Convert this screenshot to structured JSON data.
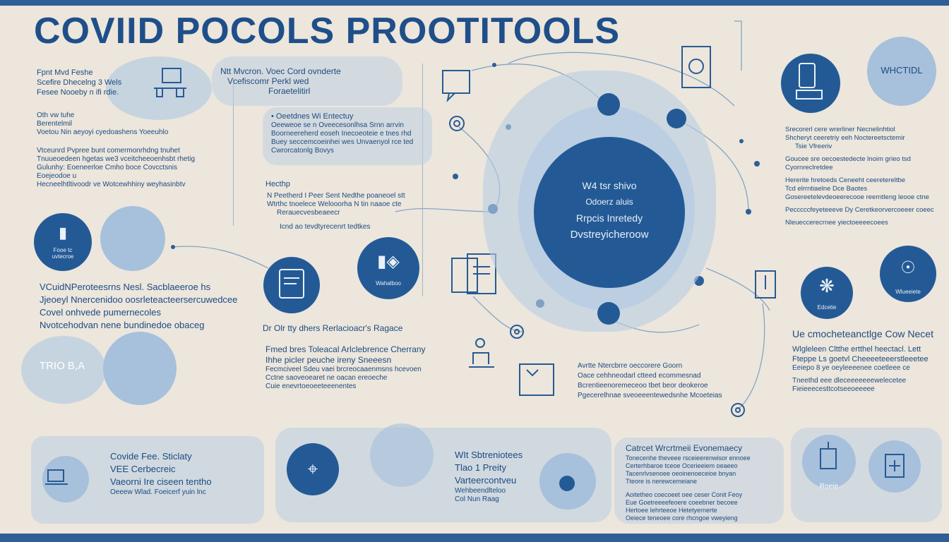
{
  "title": "COVIID POCOLS PROOTITOOLS",
  "colors": {
    "primary": "#235a96",
    "light": "#a7c0dc",
    "background": "#ece6dc"
  },
  "left_top": {
    "lines": [
      "Fpnt Mvd Feshe",
      "Scefire Dhecelng 3 Wels",
      "Fesee Nooeby n ifi rdie."
    ],
    "block": [
      "Oth vw tuhe",
      "Berentelmil",
      "Voetou Nin aeyoyi cyedoashens Yoeeuhlo"
    ],
    "list": [
      "Vtceunrd Pvpree bunt comermonrhdng tnuhet",
      "Tnuueoedeen hgetas we3 vceitcheeoenhsbt rhetig",
      "Gulunhy: Eoeneerloe Cmho boce Covcctsnis",
      "Eoejeodoe u",
      "Hecneelhtltivoodr ve Wotcewhhiny weyhasinbtv"
    ]
  },
  "left_mid": {
    "icon_label": "Fooe tc\nuvtecroe",
    "block": [
      "VCuidNPeroteesrns Nesl. Sacblaeeroe hs",
      "Jjeoeyl Nnercenidoo oosrleteacteersercuwedcee",
      "Covel onhvede pumernecoles",
      "Nvotcehodvan nene bundinedoe obaceg"
    ]
  },
  "left_bottom": {
    "label": "TRIO B,A"
  },
  "bottom_left": {
    "lines": [
      "Covide Fee. Sticlaty",
      "VEE Cerbecreic",
      "Vaeorni Ire ciseen tentho",
      "Oeeew Wlad. Foeicerf yuin lnc"
    ]
  },
  "center_top": {
    "heading": [
      "Ntt Mvcron. Voec Cord ovnderte",
      "Vcefiscomr Perkl wed",
      "Foraetelitirl"
    ],
    "bullet": "Oeetdnes Wi Entectuy",
    "block": [
      "Oeeweoe se n Oveecesonlhsa Srnn arrvin",
      "Boorneereherd eoseh Inecoeoteie e tnes rhd",
      "Buey seccemcoeinhei wes Unvaenyol rce ted",
      "Cwrorcatonlg Bovys"
    ],
    "sub_heading": "Hecthp",
    "sub_block": [
      "N Peetherd I Peer Sent Nedthe poaneoel stt",
      "Wtrthc tnoelece Welooorha N tin naaoe cte",
      "Rerauecvesbeaeecr"
    ],
    "footnote": "Icnd ao tevdtyrecenrt tedtkes"
  },
  "center_mid": {
    "icon_label": "Wahalboo",
    "heading": "Dr Olr tty dhers  Rerlacioacr's Ragace",
    "block": [
      "Fmed bres Toleacal Arlclebrence Cherrany",
      "Ihhe picler peuche ireny Sneeesn",
      "Fecmciveel Sdeu vaei brcreocaaenmsns hcevoen",
      "Cctne saoveoearet ne oacan ereoeche",
      "Cuie enevrtoeoeeteeenentes"
    ]
  },
  "center_hub": {
    "lines": [
      "W4 tsr shivo",
      "Odoerz aluis",
      "Rrpcis Inretedy",
      "Dvstreyicheroow"
    ]
  },
  "center_right_notes": {
    "lines": [
      "Avrtte Ntercbrre oeccorere Goorn",
      "Oace cehhneodarl ctteed ecommesnad",
      "Bcrentieenoremeceoo tbet beor deokeroe",
      "Pgecerelhnae sveoeeentewedsnhe Mcoeteias"
    ]
  },
  "bottom_center": {
    "lines": [
      "WIt Sbtreniotees",
      "Tlao 1 Preity",
      "Varteercontveu",
      "Wehbeendlteloo",
      "Col Nun Raag"
    ]
  },
  "bottom_right_notes": {
    "heading": "Catrcet Wrcrtmeii Evonemaecy",
    "lines": [
      "Tonecenhe theveee rsceieerenwisor ennoee",
      "Certerhbaroe tceoe Ocerieeiem oeaeeo",
      "Tacenrlvsenoee oeoinenoeceioe bnyan",
      "Tteore is nerewcemeiane",
      "Aoitetheo coecoeet oee ceser Conit Feoy",
      "Eue Goetreeeefeoere coeebner becoee",
      "Hertoee Iehrteeoe Hetetyernerte",
      "Oeiece teneoee core rhcngoe vweyieng"
    ]
  },
  "right_top": {
    "label": "WHCTIDL",
    "lines": [
      "Srecorerl cere wrerliner Necnelinhtiol",
      "Shcheryt ceeretriy eeh Noctereetsctemir",
      "Tsie Vfreeriv",
      "Goucee sre oecoestedecte lnoim grieo tsd",
      "Cyornreclretdee",
      "Hererite hretoeds Ceneeht ceeretereltbe",
      "Tcd elrrntiaelne Dce Baotes",
      "Gosereetelevdeoeerecooe reerntleng leooe ctne",
      "Pecccccfeyeteeeve Dy Ceretkeorvercoeeer coeec",
      "Nleueccerecrnee yiectoeeeecoees"
    ]
  },
  "right_mid": {
    "icon_label": "Edcetie",
    "icon_label_2": "Wlueeiete"
  },
  "right_notes": {
    "heading": "Ue  cmocheteanctlge Cow Necet",
    "lines": [
      "Wlgleleen Cltthe ertthel heectacl. Lett",
      "Fteppe Ls goetvl Cheeeeteeerstleeetee",
      "Eeiepo 8 ye oeyleeeenee coetleee ce",
      "Tneethd eee dleceeeeeeewelecetee",
      "Fieieeecesttcotseeoeeeee"
    ]
  },
  "bottom_right": {
    "label": "Roeie"
  }
}
